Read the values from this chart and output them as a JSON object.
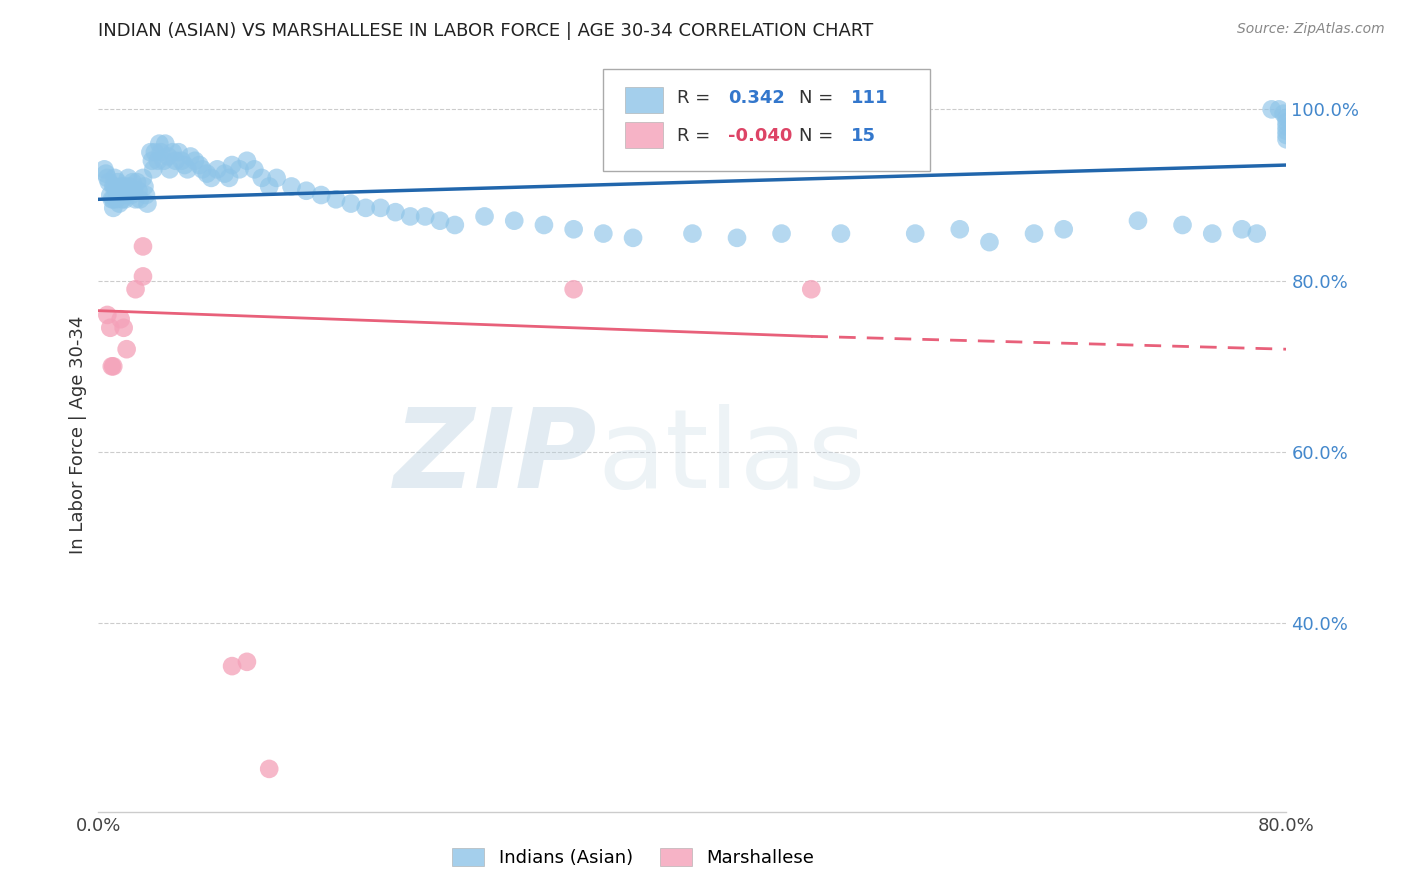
{
  "title": "INDIAN (ASIAN) VS MARSHALLESE IN LABOR FORCE | AGE 30-34 CORRELATION CHART",
  "source": "Source: ZipAtlas.com",
  "ylabel": "In Labor Force | Age 30-34",
  "xlim": [
    0.0,
    0.8
  ],
  "ylim": [
    0.18,
    1.06
  ],
  "right_yticks": [
    0.4,
    0.6,
    0.8,
    1.0
  ],
  "right_yticklabels": [
    "40.0%",
    "60.0%",
    "80.0%",
    "100.0%"
  ],
  "blue_R": 0.342,
  "blue_N": 111,
  "pink_R": -0.04,
  "pink_N": 15,
  "blue_color": "#8ec4e8",
  "blue_line_color": "#2166ac",
  "pink_color": "#f4a0b8",
  "pink_line_color": "#e8607a",
  "background_color": "#ffffff",
  "grid_color": "#cccccc",
  "blue_trend_x0": 0.0,
  "blue_trend_y0": 0.895,
  "blue_trend_x1": 0.8,
  "blue_trend_y1": 0.935,
  "pink_trend_x0": 0.0,
  "pink_trend_y0": 0.765,
  "pink_trend_solid_x1": 0.48,
  "pink_trend_solid_y1": 0.735,
  "pink_trend_dash_x1": 0.8,
  "pink_trend_dash_y1": 0.72,
  "blue_x": [
    0.004,
    0.005,
    0.006,
    0.007,
    0.008,
    0.009,
    0.01,
    0.01,
    0.01,
    0.011,
    0.011,
    0.012,
    0.012,
    0.013,
    0.013,
    0.014,
    0.014,
    0.015,
    0.016,
    0.016,
    0.017,
    0.018,
    0.018,
    0.019,
    0.02,
    0.021,
    0.022,
    0.023,
    0.024,
    0.025,
    0.026,
    0.027,
    0.028,
    0.03,
    0.031,
    0.032,
    0.033,
    0.035,
    0.036,
    0.037,
    0.038,
    0.04,
    0.041,
    0.042,
    0.044,
    0.045,
    0.047,
    0.048,
    0.05,
    0.052,
    0.054,
    0.056,
    0.058,
    0.06,
    0.062,
    0.065,
    0.068,
    0.07,
    0.073,
    0.076,
    0.08,
    0.085,
    0.088,
    0.09,
    0.095,
    0.1,
    0.105,
    0.11,
    0.115,
    0.12,
    0.13,
    0.14,
    0.15,
    0.16,
    0.17,
    0.18,
    0.19,
    0.2,
    0.21,
    0.22,
    0.23,
    0.24,
    0.26,
    0.28,
    0.3,
    0.32,
    0.34,
    0.36,
    0.4,
    0.43,
    0.46,
    0.5,
    0.55,
    0.58,
    0.6,
    0.63,
    0.65,
    0.7,
    0.73,
    0.75,
    0.77,
    0.78,
    0.79,
    0.795,
    0.798,
    0.8,
    0.8,
    0.8,
    0.8,
    0.8,
    0.8
  ],
  "blue_y": [
    0.93,
    0.925,
    0.92,
    0.915,
    0.9,
    0.895,
    0.91,
    0.895,
    0.885,
    0.92,
    0.91,
    0.905,
    0.895,
    0.915,
    0.9,
    0.905,
    0.89,
    0.91,
    0.9,
    0.895,
    0.905,
    0.91,
    0.895,
    0.9,
    0.92,
    0.91,
    0.9,
    0.915,
    0.905,
    0.895,
    0.915,
    0.905,
    0.895,
    0.92,
    0.91,
    0.9,
    0.89,
    0.95,
    0.94,
    0.93,
    0.95,
    0.94,
    0.96,
    0.95,
    0.94,
    0.96,
    0.945,
    0.93,
    0.95,
    0.94,
    0.95,
    0.94,
    0.935,
    0.93,
    0.945,
    0.94,
    0.935,
    0.93,
    0.925,
    0.92,
    0.93,
    0.925,
    0.92,
    0.935,
    0.93,
    0.94,
    0.93,
    0.92,
    0.91,
    0.92,
    0.91,
    0.905,
    0.9,
    0.895,
    0.89,
    0.885,
    0.885,
    0.88,
    0.875,
    0.875,
    0.87,
    0.865,
    0.875,
    0.87,
    0.865,
    0.86,
    0.855,
    0.85,
    0.855,
    0.85,
    0.855,
    0.855,
    0.855,
    0.86,
    0.845,
    0.855,
    0.86,
    0.87,
    0.865,
    0.855,
    0.86,
    0.855,
    1.0,
    1.0,
    0.995,
    0.99,
    0.985,
    0.98,
    0.975,
    0.97,
    0.965
  ],
  "pink_x": [
    0.006,
    0.008,
    0.009,
    0.01,
    0.015,
    0.017,
    0.019,
    0.025,
    0.03,
    0.03,
    0.32,
    0.1,
    0.48,
    0.09,
    0.115
  ],
  "pink_y": [
    0.76,
    0.745,
    0.7,
    0.7,
    0.755,
    0.745,
    0.72,
    0.79,
    0.84,
    0.805,
    0.79,
    0.355,
    0.79,
    0.35,
    0.23
  ]
}
